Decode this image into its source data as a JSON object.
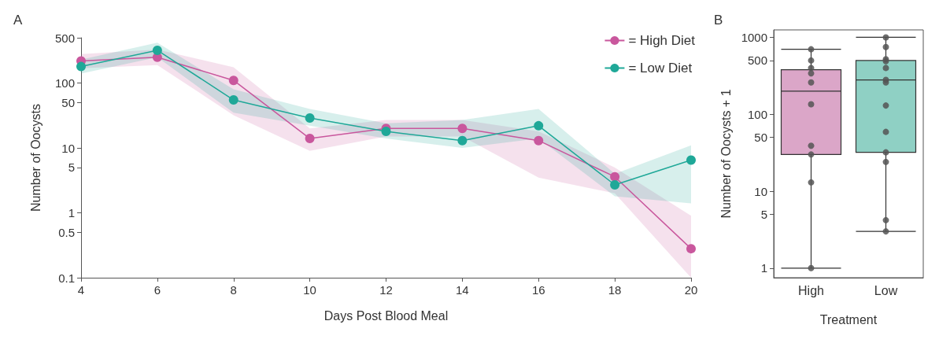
{
  "chart_data": [
    {
      "type": "line",
      "title": "A",
      "xlabel": "Days Post Blood Meal",
      "ylabel": "Number of Oocysts",
      "x": [
        4,
        6,
        8,
        10,
        12,
        14,
        16,
        18,
        20
      ],
      "xlim": [
        4,
        20
      ],
      "xticks": [
        4,
        6,
        8,
        10,
        12,
        14,
        16,
        18,
        20
      ],
      "ylim": [
        0.1,
        500
      ],
      "yticks": [
        0.1,
        0.5,
        1,
        5,
        10,
        50,
        100,
        500
      ],
      "log": "y",
      "grid": false,
      "legend": "top right",
      "marker": "circle",
      "series": [
        {
          "name": "= High Diet",
          "color": "#c9579d",
          "values": [
            220,
            250,
            110,
            14,
            20,
            20,
            13,
            3.6,
            0.28
          ],
          "lower": [
            170,
            190,
            32,
            9,
            15,
            15,
            3.5,
            2,
            0.1
          ],
          "upper": [
            280,
            330,
            175,
            20,
            27,
            27,
            18,
            5,
            0.9
          ]
        },
        {
          "name": "= Low Diet",
          "color": "#1fa898",
          "values": [
            180,
            320,
            55,
            29,
            18,
            13,
            22,
            2.7,
            6.5
          ],
          "lower": [
            140,
            250,
            35,
            22,
            14,
            10,
            14,
            1.8,
            1.4
          ],
          "upper": [
            230,
            420,
            80,
            40,
            24,
            27,
            40,
            4,
            11
          ]
        }
      ]
    },
    {
      "type": "box",
      "title": "B",
      "xlabel": "Treatment",
      "ylabel": "Number of Oocysts + 1",
      "categories": [
        "High",
        "Low"
      ],
      "ylim": [
        0.75,
        1250
      ],
      "yticks": [
        1,
        5,
        10,
        50,
        100,
        500,
        1000
      ],
      "log": "y",
      "grid": false,
      "series": [
        {
          "type": "box",
          "colors": [
            "#dba6c8",
            "#8fd0c4"
          ],
          "boxes": [
            {
              "low": 1,
              "q1": 30,
              "median": 200,
              "q3": 380,
              "high": 700
            },
            {
              "low": 3,
              "q1": 32,
              "median": 280,
              "q3": 500,
              "high": 1000
            }
          ]
        },
        {
          "type": "scatter",
          "color": "#555555",
          "x": [
            "High",
            "High",
            "High",
            "High",
            "High",
            "High",
            "High",
            "High",
            "High",
            "High",
            "Low",
            "Low",
            "Low",
            "Low",
            "Low",
            "Low",
            "Low",
            "Low",
            "Low",
            "Low",
            "Low",
            "Low",
            "Low"
          ],
          "values": [
            700,
            500,
            400,
            340,
            260,
            135,
            39,
            30,
            13,
            1,
            1000,
            750,
            520,
            490,
            400,
            280,
            260,
            130,
            59,
            32,
            24,
            4.2,
            3
          ]
        }
      ]
    }
  ]
}
